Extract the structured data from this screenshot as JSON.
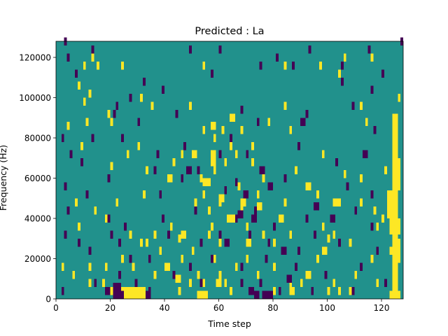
{
  "chart_data": {
    "type": "heatmap",
    "title": "Predicted : La",
    "xlabel": "Time step",
    "ylabel": "Frequency (Hz)",
    "xlim": [
      0,
      128
    ],
    "ylim": [
      0,
      128000
    ],
    "x_ticks": [
      0,
      20,
      40,
      60,
      80,
      100,
      120
    ],
    "x_tick_labels": [
      "0",
      "20",
      "40",
      "60",
      "80",
      "100",
      "120"
    ],
    "y_ticks": [
      0,
      20000,
      40000,
      60000,
      80000,
      100000,
      120000
    ],
    "y_tick_labels": [
      "0",
      "20000",
      "40000",
      "60000",
      "80000",
      "100000",
      "120000"
    ],
    "grid": false,
    "legend": "none",
    "value_levels": [
      -1,
      0,
      1
    ],
    "colors": {
      "low": "#440154",
      "mid": "#21918c",
      "high": "#fde725"
    },
    "background_value": 0,
    "cell_height": 4000,
    "cells_high": [
      [
        13,
        118000
      ],
      [
        10,
        114000
      ],
      [
        15,
        114000
      ],
      [
        24,
        114000
      ],
      [
        54,
        114000
      ],
      [
        84,
        114000
      ],
      [
        106,
        118000
      ],
      [
        97,
        114000
      ],
      [
        116,
        118000
      ],
      [
        104,
        110000
      ],
      [
        8,
        104000
      ],
      [
        12,
        100000
      ],
      [
        10,
        96000
      ],
      [
        31,
        98000
      ],
      [
        35,
        94000
      ],
      [
        49,
        94000
      ],
      [
        84,
        94000
      ],
      [
        112,
        94000
      ],
      [
        126,
        98000
      ],
      [
        19,
        90000
      ],
      [
        4,
        84000
      ],
      [
        11,
        86000
      ],
      [
        20,
        86000
      ],
      [
        54,
        82000
      ],
      [
        58,
        78000
      ],
      [
        61,
        82000
      ],
      [
        68,
        82000
      ],
      [
        78,
        86000
      ],
      [
        86,
        82000
      ],
      [
        114,
        86000
      ],
      [
        9,
        74000
      ],
      [
        26,
        70000
      ],
      [
        30,
        74000
      ],
      [
        46,
        70000
      ],
      [
        58,
        70000
      ],
      [
        62,
        66000
      ],
      [
        64,
        74000
      ],
      [
        66,
        70000
      ],
      [
        72,
        74000
      ],
      [
        98,
        70000
      ],
      [
        20,
        64000
      ],
      [
        33,
        62000
      ],
      [
        43,
        66000
      ],
      [
        53,
        58000
      ],
      [
        58,
        62000
      ],
      [
        76,
        58000
      ],
      [
        88,
        62000
      ],
      [
        106,
        60000
      ],
      [
        112,
        58000
      ],
      [
        121,
        62000
      ],
      [
        7,
        46000
      ],
      [
        14,
        42000
      ],
      [
        22,
        46000
      ],
      [
        32,
        50000
      ],
      [
        51,
        46000
      ],
      [
        54,
        50000
      ],
      [
        56,
        42000
      ],
      [
        60,
        46000
      ],
      [
        68,
        42000
      ],
      [
        74,
        50000
      ],
      [
        84,
        46000
      ],
      [
        96,
        50000
      ],
      [
        104,
        46000
      ],
      [
        112,
        46000
      ],
      [
        117,
        42000
      ],
      [
        120,
        38000
      ],
      [
        122,
        46000
      ],
      [
        8,
        34000
      ],
      [
        18,
        38000
      ],
      [
        27,
        30000
      ],
      [
        31,
        26000
      ],
      [
        36,
        30000
      ],
      [
        42,
        34000
      ],
      [
        45,
        28000
      ],
      [
        50,
        22000
      ],
      [
        56,
        30000
      ],
      [
        60,
        26000
      ],
      [
        70,
        34000
      ],
      [
        76,
        30000
      ],
      [
        80,
        26000
      ],
      [
        86,
        30000
      ],
      [
        98,
        34000
      ],
      [
        102,
        30000
      ],
      [
        108,
        26000
      ],
      [
        118,
        34000
      ],
      [
        2,
        14000
      ],
      [
        6,
        10000
      ],
      [
        12,
        14000
      ],
      [
        18,
        14000
      ],
      [
        24,
        18000
      ],
      [
        28,
        14000
      ],
      [
        33,
        26000
      ],
      [
        38,
        22000
      ],
      [
        46,
        18000
      ],
      [
        52,
        10000
      ],
      [
        54,
        6000
      ],
      [
        58,
        18000
      ],
      [
        60,
        10000
      ],
      [
        62,
        6000
      ],
      [
        66,
        14000
      ],
      [
        70,
        18000
      ],
      [
        74,
        10000
      ],
      [
        80,
        14000
      ],
      [
        86,
        6000
      ],
      [
        92,
        10000
      ],
      [
        96,
        18000
      ],
      [
        100,
        2000
      ],
      [
        104,
        2000
      ],
      [
        110,
        10000
      ],
      [
        116,
        18000
      ],
      [
        123,
        22000
      ],
      [
        126,
        26000
      ],
      [
        12,
        6000
      ],
      [
        17,
        6000
      ],
      [
        20,
        2000
      ],
      [
        26,
        2000
      ],
      [
        36,
        10000
      ],
      [
        45,
        2000
      ],
      [
        49,
        6000
      ],
      [
        64,
        2000
      ],
      [
        80,
        2000
      ],
      [
        90,
        6000
      ],
      [
        93,
        10000
      ],
      [
        102,
        6000
      ],
      [
        118,
        6000
      ],
      [
        100,
        28000
      ],
      [
        67,
        54000
      ],
      [
        72,
        66000
      ],
      [
        57,
        34000
      ],
      [
        124,
        78000
      ]
    ],
    "cells_low": [
      [
        3,
        126000
      ],
      [
        4,
        118000
      ],
      [
        13,
        122000
      ],
      [
        49,
        122000
      ],
      [
        60,
        122000
      ],
      [
        75,
        114000
      ],
      [
        81,
        118000
      ],
      [
        87,
        114000
      ],
      [
        93,
        122000
      ],
      [
        115,
        122000
      ],
      [
        105,
        114000
      ],
      [
        120,
        110000
      ],
      [
        7,
        110000
      ],
      [
        39,
        102000
      ],
      [
        32,
        106000
      ],
      [
        57,
        110000
      ],
      [
        105,
        106000
      ],
      [
        116,
        102000
      ],
      [
        109,
        94000
      ],
      [
        127,
        126000
      ],
      [
        27,
        98000
      ],
      [
        22,
        94000
      ],
      [
        21,
        90000
      ],
      [
        30,
        86000
      ],
      [
        44,
        90000
      ],
      [
        68,
        92000
      ],
      [
        74,
        86000
      ],
      [
        92,
        90000
      ],
      [
        117,
        82000
      ],
      [
        2,
        78000
      ],
      [
        5,
        70000
      ],
      [
        9,
        66000
      ],
      [
        13,
        78000
      ],
      [
        24,
        78000
      ],
      [
        37,
        70000
      ],
      [
        47,
        74000
      ],
      [
        52,
        62000
      ],
      [
        64,
        78000
      ],
      [
        70,
        70000
      ],
      [
        89,
        74000
      ],
      [
        103,
        66000
      ],
      [
        3,
        54000
      ],
      [
        11,
        50000
      ],
      [
        19,
        58000
      ],
      [
        36,
        62000
      ],
      [
        46,
        58000
      ],
      [
        62,
        52000
      ],
      [
        66,
        56000
      ],
      [
        84,
        58000
      ],
      [
        107,
        54000
      ],
      [
        116,
        50000
      ],
      [
        4,
        42000
      ],
      [
        19,
        38000
      ],
      [
        25,
        34000
      ],
      [
        39,
        38000
      ],
      [
        51,
        42000
      ],
      [
        66,
        38000
      ],
      [
        73,
        42000
      ],
      [
        80,
        34000
      ],
      [
        92,
        38000
      ],
      [
        110,
        42000
      ],
      [
        116,
        34000
      ],
      [
        3,
        30000
      ],
      [
        20,
        30000
      ],
      [
        23,
        26000
      ],
      [
        41,
        30000
      ],
      [
        53,
        26000
      ],
      [
        60,
        30000
      ],
      [
        71,
        30000
      ],
      [
        78,
        26000
      ],
      [
        89,
        22000
      ],
      [
        95,
        30000
      ],
      [
        104,
        26000
      ],
      [
        12,
        22000
      ],
      [
        27,
        18000
      ],
      [
        34,
        18000
      ],
      [
        49,
        14000
      ],
      [
        57,
        18000
      ],
      [
        68,
        14000
      ],
      [
        77,
        18000
      ],
      [
        88,
        14000
      ],
      [
        99,
        10000
      ],
      [
        112,
        14000
      ],
      [
        118,
        22000
      ],
      [
        2,
        2000
      ],
      [
        14,
        6000
      ],
      [
        23,
        10000
      ],
      [
        29,
        6000
      ],
      [
        34,
        2000
      ],
      [
        43,
        10000
      ],
      [
        53,
        6000
      ],
      [
        68,
        6000
      ],
      [
        75,
        6000
      ],
      [
        82,
        2000
      ],
      [
        94,
        2000
      ],
      [
        109,
        2000
      ],
      [
        121,
        6000
      ],
      [
        8,
        26000
      ],
      [
        38,
        50000
      ],
      [
        60,
        70000
      ]
    ],
    "blocks_high": [
      [
        123,
        0,
        127,
        4000
      ],
      [
        124,
        4000,
        126,
        92000
      ],
      [
        123,
        32000,
        127,
        40000
      ],
      [
        122,
        40000,
        126,
        54000
      ],
      [
        125,
        54000,
        127,
        70000
      ],
      [
        126,
        18000,
        127,
        30000
      ],
      [
        23,
        0,
        30,
        6000
      ],
      [
        52,
        0,
        56,
        4000
      ],
      [
        29,
        0,
        33,
        6000
      ],
      [
        57,
        84000,
        59,
        88000
      ],
      [
        57,
        66000,
        59,
        74000
      ],
      [
        63,
        38000,
        66,
        42000
      ],
      [
        60,
        48000,
        62,
        52000
      ],
      [
        54,
        56000,
        57,
        60000
      ],
      [
        64,
        88000,
        66,
        92000
      ],
      [
        68,
        46000,
        70,
        50000
      ],
      [
        74,
        44000,
        76,
        48000
      ],
      [
        86,
        2000,
        88,
        6000
      ],
      [
        98,
        22000,
        100,
        26000
      ],
      [
        108,
        2000,
        110,
        6000
      ],
      [
        40,
        14000,
        42,
        18000
      ],
      [
        41,
        58000,
        43,
        62000
      ],
      [
        44,
        8000,
        46,
        12000
      ],
      [
        59,
        6000,
        61,
        10000
      ],
      [
        46,
        30000,
        48,
        34000
      ],
      [
        82,
        38000,
        84,
        42000
      ],
      [
        92,
        54000,
        94,
        58000
      ],
      [
        102,
        46000,
        104,
        50000
      ],
      [
        70,
        26000,
        72,
        30000
      ],
      [
        50,
        70000,
        52,
        74000
      ]
    ],
    "blocks_low": [
      [
        21,
        0,
        25,
        4000
      ],
      [
        21,
        4000,
        24,
        8000
      ],
      [
        76,
        0,
        80,
        4000
      ],
      [
        33,
        0,
        35,
        4000
      ],
      [
        73,
        0,
        75,
        4000
      ],
      [
        62,
        26000,
        64,
        30000
      ],
      [
        69,
        50000,
        71,
        54000
      ],
      [
        72,
        38000,
        74,
        42000
      ],
      [
        78,
        54000,
        80,
        58000
      ],
      [
        67,
        40000,
        69,
        44000
      ],
      [
        71,
        2000,
        73,
        6000
      ],
      [
        85,
        8000,
        87,
        12000
      ],
      [
        18,
        2000,
        20,
        6000
      ],
      [
        48,
        62000,
        50,
        66000
      ],
      [
        90,
        86000,
        92,
        90000
      ],
      [
        95,
        44000,
        97,
        48000
      ],
      [
        113,
        70000,
        115,
        74000
      ],
      [
        101,
        38000,
        103,
        42000
      ],
      [
        75,
        62000,
        77,
        66000
      ],
      [
        83,
        22000,
        85,
        26000
      ]
    ]
  }
}
